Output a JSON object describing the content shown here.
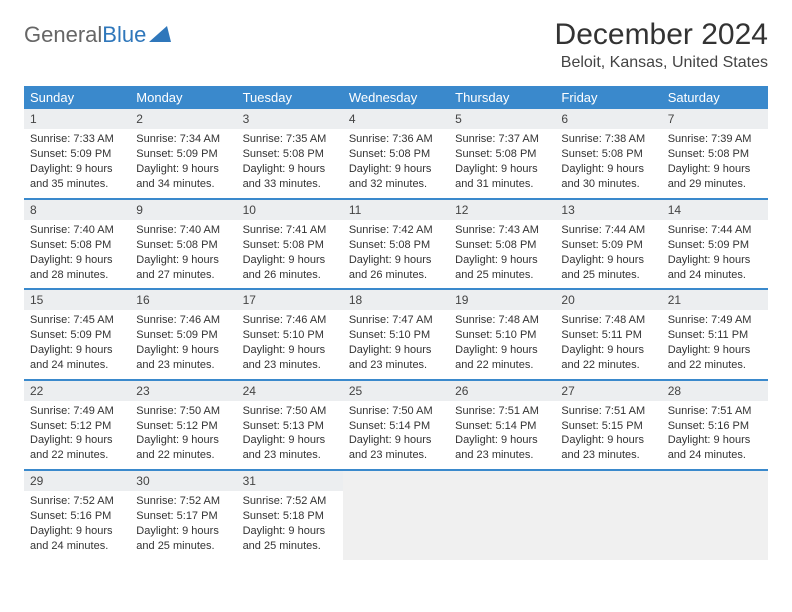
{
  "logo": {
    "text1": "General",
    "text2": "Blue"
  },
  "title": "December 2024",
  "location": "Beloit, Kansas, United States",
  "colors": {
    "header_bg": "#3a89cc",
    "header_text": "#ffffff",
    "daynum_bg": "#eceef0",
    "border": "#3a89cc",
    "logo_accent": "#2f77bb",
    "body_text": "#333333",
    "empty_bg": "#f0f0f0"
  },
  "weekdays": [
    "Sunday",
    "Monday",
    "Tuesday",
    "Wednesday",
    "Thursday",
    "Friday",
    "Saturday"
  ],
  "weeks": [
    [
      {
        "n": "1",
        "sr": "7:33 AM",
        "ss": "5:09 PM",
        "dl": "9 hours and 35 minutes."
      },
      {
        "n": "2",
        "sr": "7:34 AM",
        "ss": "5:09 PM",
        "dl": "9 hours and 34 minutes."
      },
      {
        "n": "3",
        "sr": "7:35 AM",
        "ss": "5:08 PM",
        "dl": "9 hours and 33 minutes."
      },
      {
        "n": "4",
        "sr": "7:36 AM",
        "ss": "5:08 PM",
        "dl": "9 hours and 32 minutes."
      },
      {
        "n": "5",
        "sr": "7:37 AM",
        "ss": "5:08 PM",
        "dl": "9 hours and 31 minutes."
      },
      {
        "n": "6",
        "sr": "7:38 AM",
        "ss": "5:08 PM",
        "dl": "9 hours and 30 minutes."
      },
      {
        "n": "7",
        "sr": "7:39 AM",
        "ss": "5:08 PM",
        "dl": "9 hours and 29 minutes."
      }
    ],
    [
      {
        "n": "8",
        "sr": "7:40 AM",
        "ss": "5:08 PM",
        "dl": "9 hours and 28 minutes."
      },
      {
        "n": "9",
        "sr": "7:40 AM",
        "ss": "5:08 PM",
        "dl": "9 hours and 27 minutes."
      },
      {
        "n": "10",
        "sr": "7:41 AM",
        "ss": "5:08 PM",
        "dl": "9 hours and 26 minutes."
      },
      {
        "n": "11",
        "sr": "7:42 AM",
        "ss": "5:08 PM",
        "dl": "9 hours and 26 minutes."
      },
      {
        "n": "12",
        "sr": "7:43 AM",
        "ss": "5:08 PM",
        "dl": "9 hours and 25 minutes."
      },
      {
        "n": "13",
        "sr": "7:44 AM",
        "ss": "5:09 PM",
        "dl": "9 hours and 25 minutes."
      },
      {
        "n": "14",
        "sr": "7:44 AM",
        "ss": "5:09 PM",
        "dl": "9 hours and 24 minutes."
      }
    ],
    [
      {
        "n": "15",
        "sr": "7:45 AM",
        "ss": "5:09 PM",
        "dl": "9 hours and 24 minutes."
      },
      {
        "n": "16",
        "sr": "7:46 AM",
        "ss": "5:09 PM",
        "dl": "9 hours and 23 minutes."
      },
      {
        "n": "17",
        "sr": "7:46 AM",
        "ss": "5:10 PM",
        "dl": "9 hours and 23 minutes."
      },
      {
        "n": "18",
        "sr": "7:47 AM",
        "ss": "5:10 PM",
        "dl": "9 hours and 23 minutes."
      },
      {
        "n": "19",
        "sr": "7:48 AM",
        "ss": "5:10 PM",
        "dl": "9 hours and 22 minutes."
      },
      {
        "n": "20",
        "sr": "7:48 AM",
        "ss": "5:11 PM",
        "dl": "9 hours and 22 minutes."
      },
      {
        "n": "21",
        "sr": "7:49 AM",
        "ss": "5:11 PM",
        "dl": "9 hours and 22 minutes."
      }
    ],
    [
      {
        "n": "22",
        "sr": "7:49 AM",
        "ss": "5:12 PM",
        "dl": "9 hours and 22 minutes."
      },
      {
        "n": "23",
        "sr": "7:50 AM",
        "ss": "5:12 PM",
        "dl": "9 hours and 22 minutes."
      },
      {
        "n": "24",
        "sr": "7:50 AM",
        "ss": "5:13 PM",
        "dl": "9 hours and 23 minutes."
      },
      {
        "n": "25",
        "sr": "7:50 AM",
        "ss": "5:14 PM",
        "dl": "9 hours and 23 minutes."
      },
      {
        "n": "26",
        "sr": "7:51 AM",
        "ss": "5:14 PM",
        "dl": "9 hours and 23 minutes."
      },
      {
        "n": "27",
        "sr": "7:51 AM",
        "ss": "5:15 PM",
        "dl": "9 hours and 23 minutes."
      },
      {
        "n": "28",
        "sr": "7:51 AM",
        "ss": "5:16 PM",
        "dl": "9 hours and 24 minutes."
      }
    ],
    [
      {
        "n": "29",
        "sr": "7:52 AM",
        "ss": "5:16 PM",
        "dl": "9 hours and 24 minutes."
      },
      {
        "n": "30",
        "sr": "7:52 AM",
        "ss": "5:17 PM",
        "dl": "9 hours and 25 minutes."
      },
      {
        "n": "31",
        "sr": "7:52 AM",
        "ss": "5:18 PM",
        "dl": "9 hours and 25 minutes."
      },
      null,
      null,
      null,
      null
    ]
  ],
  "labels": {
    "sunrise": "Sunrise:",
    "sunset": "Sunset:",
    "daylight": "Daylight:"
  }
}
